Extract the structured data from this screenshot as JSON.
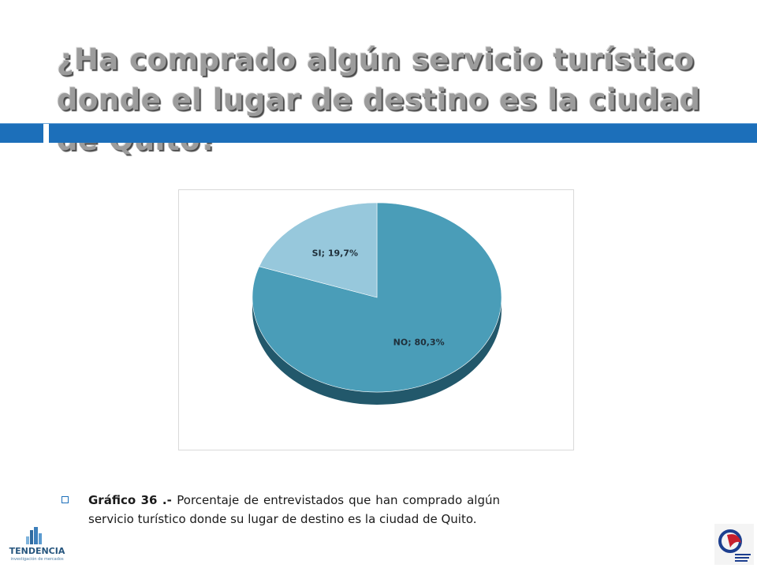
{
  "title": "¿Ha comprado algún servicio turístico donde el lugar de destino es la ciudad de Quito?",
  "caption": {
    "prefix": "Gráfico 36 .- ",
    "text": "Porcentaje de entrevistados que han comprado algún servicio turístico donde su lugar de destino es la ciudad de Quito."
  },
  "logos": {
    "left_name": "TENDENCIA",
    "left_tagline": "investigación de mercados"
  },
  "colors": {
    "accent_bar": "#1c6fba",
    "title_text": "#9c9c9c",
    "slice_no": "#4a9db8",
    "slice_si": "#97c8dc",
    "pie_side": "#22586b"
  },
  "chart_data": {
    "type": "pie",
    "title": "",
    "slices": [
      {
        "label": "SI",
        "value": 19.7,
        "data_label": "SI; 19,7%"
      },
      {
        "label": "NO",
        "value": 80.3,
        "data_label": "NO; 80,3%"
      }
    ],
    "start": "12 o'clock",
    "direction": "clockwise",
    "style": "3d",
    "legend": "none"
  }
}
